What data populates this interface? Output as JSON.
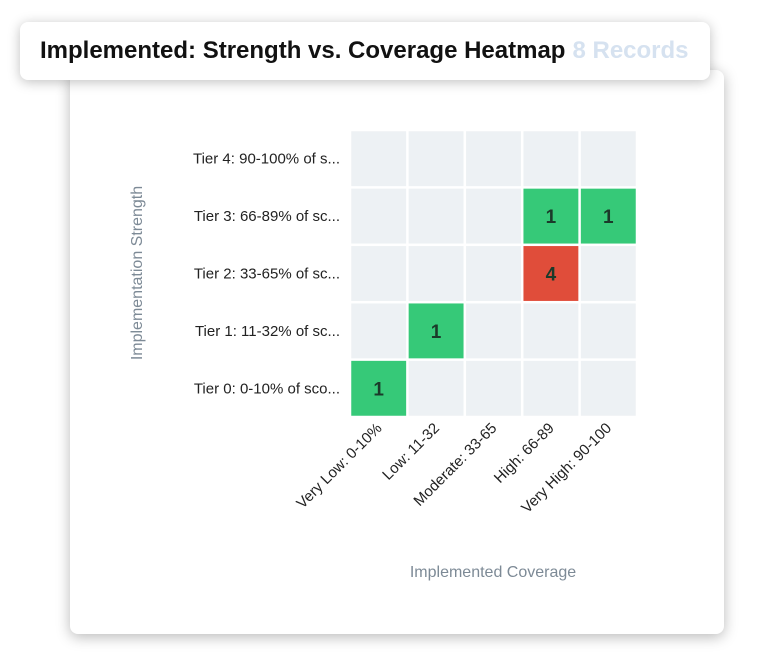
{
  "header": {
    "title": "Implemented: Strength vs. Coverage Heatmap",
    "record_count": "8 Records"
  },
  "colors": {
    "empty_cell": "#edf1f4",
    "low_value": "#36c978",
    "high_value": "#e04d3a",
    "low_value_text": "#1b3a2a",
    "high_value_text": "#5c1a12"
  },
  "chart_data": {
    "type": "heatmap",
    "title": "Implemented: Strength vs. Coverage Heatmap",
    "xlabel": "Implemented Coverage",
    "ylabel": "Implementation Strength",
    "x_categories": [
      "Very Low: 0-10%",
      "Low: 11-32",
      "Moderate: 33-65",
      "High: 66-89",
      "Very High: 90-100"
    ],
    "y_categories": [
      "Tier 4: 90-100% of s...",
      "Tier 3: 66-89% of sc...",
      "Tier 2: 33-65% of sc...",
      "Tier 1: 11-32% of sc...",
      "Tier 0: 0-10% of sco..."
    ],
    "values": [
      [
        null,
        null,
        null,
        null,
        null
      ],
      [
        null,
        null,
        null,
        1,
        1
      ],
      [
        null,
        null,
        null,
        4,
        null
      ],
      [
        null,
        1,
        null,
        null,
        null
      ],
      [
        1,
        null,
        null,
        null,
        null
      ]
    ],
    "grid": true
  }
}
